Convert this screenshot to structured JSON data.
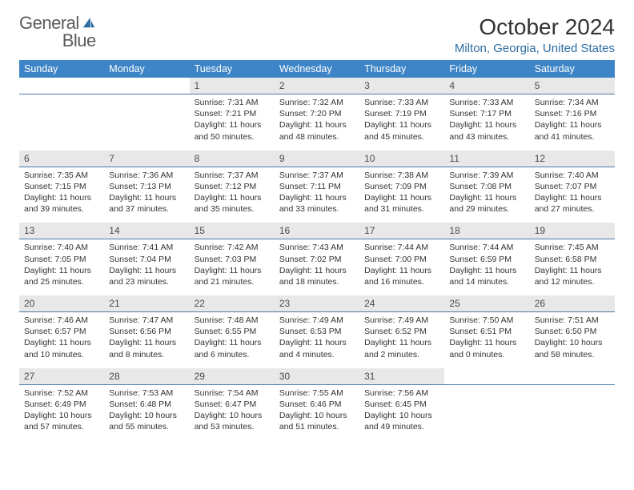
{
  "logo": {
    "text1": "General",
    "text2": "Blue"
  },
  "title": "October 2024",
  "location": "Milton, Georgia, United States",
  "colors": {
    "header_bg": "#3d85c6",
    "header_fg": "#ffffff",
    "daynum_bg": "#e8e8e8",
    "daynum_border": "#4a7aa8",
    "location_color": "#2d6da3",
    "logo_color": "#5a5a5a",
    "text_color": "#333333"
  },
  "day_headers": [
    "Sunday",
    "Monday",
    "Tuesday",
    "Wednesday",
    "Thursday",
    "Friday",
    "Saturday"
  ],
  "weeks": [
    [
      {
        "empty": true
      },
      {
        "empty": true
      },
      {
        "num": "1",
        "sunrise": "7:31 AM",
        "sunset": "7:21 PM",
        "daylight": "11 hours and 50 minutes."
      },
      {
        "num": "2",
        "sunrise": "7:32 AM",
        "sunset": "7:20 PM",
        "daylight": "11 hours and 48 minutes."
      },
      {
        "num": "3",
        "sunrise": "7:33 AM",
        "sunset": "7:19 PM",
        "daylight": "11 hours and 45 minutes."
      },
      {
        "num": "4",
        "sunrise": "7:33 AM",
        "sunset": "7:17 PM",
        "daylight": "11 hours and 43 minutes."
      },
      {
        "num": "5",
        "sunrise": "7:34 AM",
        "sunset": "7:16 PM",
        "daylight": "11 hours and 41 minutes."
      }
    ],
    [
      {
        "num": "6",
        "sunrise": "7:35 AM",
        "sunset": "7:15 PM",
        "daylight": "11 hours and 39 minutes."
      },
      {
        "num": "7",
        "sunrise": "7:36 AM",
        "sunset": "7:13 PM",
        "daylight": "11 hours and 37 minutes."
      },
      {
        "num": "8",
        "sunrise": "7:37 AM",
        "sunset": "7:12 PM",
        "daylight": "11 hours and 35 minutes."
      },
      {
        "num": "9",
        "sunrise": "7:37 AM",
        "sunset": "7:11 PM",
        "daylight": "11 hours and 33 minutes."
      },
      {
        "num": "10",
        "sunrise": "7:38 AM",
        "sunset": "7:09 PM",
        "daylight": "11 hours and 31 minutes."
      },
      {
        "num": "11",
        "sunrise": "7:39 AM",
        "sunset": "7:08 PM",
        "daylight": "11 hours and 29 minutes."
      },
      {
        "num": "12",
        "sunrise": "7:40 AM",
        "sunset": "7:07 PM",
        "daylight": "11 hours and 27 minutes."
      }
    ],
    [
      {
        "num": "13",
        "sunrise": "7:40 AM",
        "sunset": "7:05 PM",
        "daylight": "11 hours and 25 minutes."
      },
      {
        "num": "14",
        "sunrise": "7:41 AM",
        "sunset": "7:04 PM",
        "daylight": "11 hours and 23 minutes."
      },
      {
        "num": "15",
        "sunrise": "7:42 AM",
        "sunset": "7:03 PM",
        "daylight": "11 hours and 21 minutes."
      },
      {
        "num": "16",
        "sunrise": "7:43 AM",
        "sunset": "7:02 PM",
        "daylight": "11 hours and 18 minutes."
      },
      {
        "num": "17",
        "sunrise": "7:44 AM",
        "sunset": "7:00 PM",
        "daylight": "11 hours and 16 minutes."
      },
      {
        "num": "18",
        "sunrise": "7:44 AM",
        "sunset": "6:59 PM",
        "daylight": "11 hours and 14 minutes."
      },
      {
        "num": "19",
        "sunrise": "7:45 AM",
        "sunset": "6:58 PM",
        "daylight": "11 hours and 12 minutes."
      }
    ],
    [
      {
        "num": "20",
        "sunrise": "7:46 AM",
        "sunset": "6:57 PM",
        "daylight": "11 hours and 10 minutes."
      },
      {
        "num": "21",
        "sunrise": "7:47 AM",
        "sunset": "6:56 PM",
        "daylight": "11 hours and 8 minutes."
      },
      {
        "num": "22",
        "sunrise": "7:48 AM",
        "sunset": "6:55 PM",
        "daylight": "11 hours and 6 minutes."
      },
      {
        "num": "23",
        "sunrise": "7:49 AM",
        "sunset": "6:53 PM",
        "daylight": "11 hours and 4 minutes."
      },
      {
        "num": "24",
        "sunrise": "7:49 AM",
        "sunset": "6:52 PM",
        "daylight": "11 hours and 2 minutes."
      },
      {
        "num": "25",
        "sunrise": "7:50 AM",
        "sunset": "6:51 PM",
        "daylight": "11 hours and 0 minutes."
      },
      {
        "num": "26",
        "sunrise": "7:51 AM",
        "sunset": "6:50 PM",
        "daylight": "10 hours and 58 minutes."
      }
    ],
    [
      {
        "num": "27",
        "sunrise": "7:52 AM",
        "sunset": "6:49 PM",
        "daylight": "10 hours and 57 minutes."
      },
      {
        "num": "28",
        "sunrise": "7:53 AM",
        "sunset": "6:48 PM",
        "daylight": "10 hours and 55 minutes."
      },
      {
        "num": "29",
        "sunrise": "7:54 AM",
        "sunset": "6:47 PM",
        "daylight": "10 hours and 53 minutes."
      },
      {
        "num": "30",
        "sunrise": "7:55 AM",
        "sunset": "6:46 PM",
        "daylight": "10 hours and 51 minutes."
      },
      {
        "num": "31",
        "sunrise": "7:56 AM",
        "sunset": "6:45 PM",
        "daylight": "10 hours and 49 minutes."
      },
      {
        "empty": true
      },
      {
        "empty": true
      }
    ]
  ],
  "labels": {
    "sunrise": "Sunrise:",
    "sunset": "Sunset:",
    "daylight": "Daylight:"
  }
}
